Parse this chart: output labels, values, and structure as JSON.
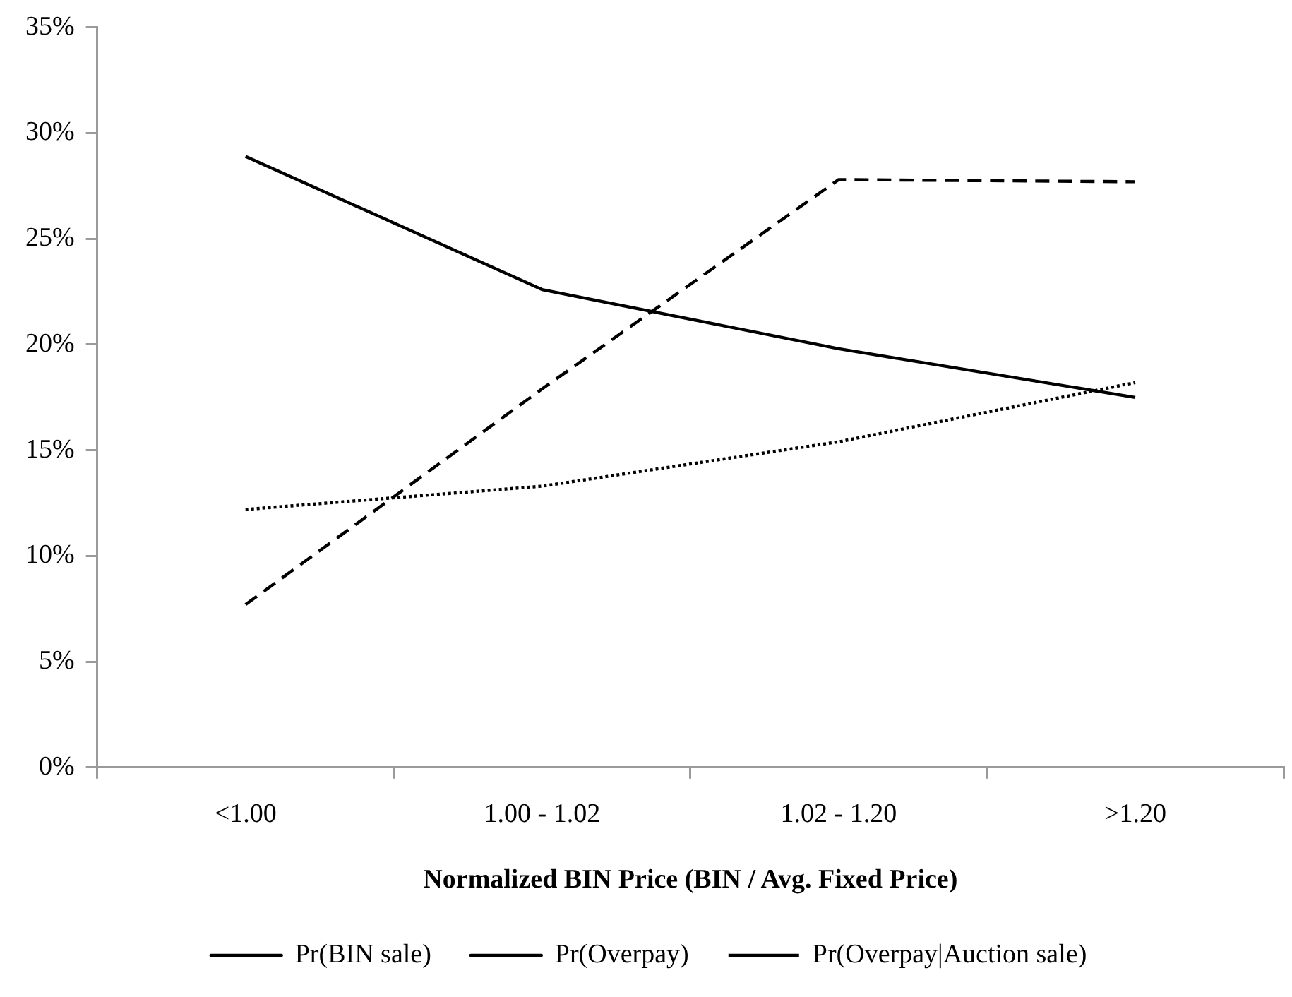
{
  "chart_data": {
    "type": "line",
    "xlabel": "Normalized BIN Price (BIN / Avg. Fixed Price)",
    "categories": [
      "<1.00",
      "1.00 - 1.02",
      "1.02 - 1.20",
      ">1.20"
    ],
    "series": [
      {
        "name": "Pr(BIN sale)",
        "color": "#000000",
        "line_style": "solid",
        "values": [
          28.9,
          22.6,
          19.8,
          17.5
        ]
      },
      {
        "name": "Pr(Overpay)",
        "color": "#000000",
        "line_style": "dashed",
        "values": [
          7.7,
          17.9,
          27.8,
          27.7
        ]
      },
      {
        "name": "Pr(Overpay|Auction sale)",
        "color": "#000000",
        "line_style": "dotted",
        "values": [
          12.2,
          13.3,
          15.4,
          18.2
        ]
      }
    ],
    "ylim": [
      0,
      35
    ],
    "yticks": [
      {
        "value": 0,
        "label": "0%"
      },
      {
        "value": 5,
        "label": "5%"
      },
      {
        "value": 10,
        "label": "10%"
      },
      {
        "value": 15,
        "label": "15%"
      },
      {
        "value": 20,
        "label": "20%"
      },
      {
        "value": 25,
        "label": "25%"
      },
      {
        "value": 30,
        "label": "30%"
      },
      {
        "value": 35,
        "label": "35%"
      }
    ],
    "grid": false,
    "legend": "bottom"
  }
}
